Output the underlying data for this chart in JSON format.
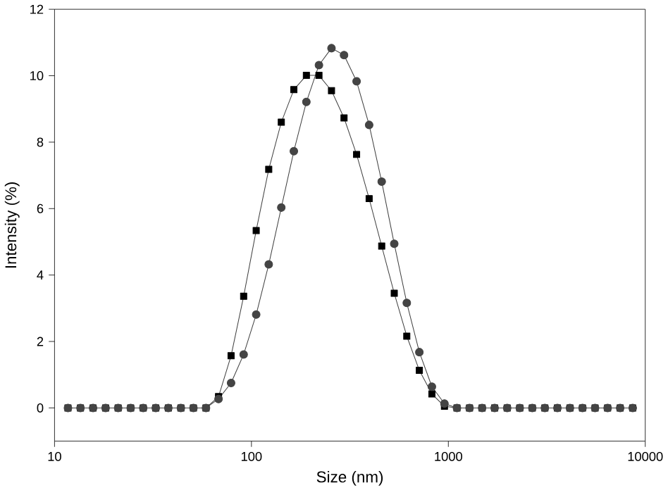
{
  "chart_data": {
    "type": "line",
    "xlabel": "Size (nm)",
    "ylabel": "Intensity (%)",
    "log": "x",
    "xlim": [
      10,
      10000
    ],
    "xticks": [
      10,
      100,
      1000,
      10000
    ],
    "ylim": [
      -1,
      12
    ],
    "yticks": [
      0,
      2,
      4,
      6,
      8,
      10,
      12
    ],
    "line_style": "solid",
    "x": [
      11.7,
      13.54,
      15.69,
      18.17,
      21.04,
      24.36,
      28.21,
      32.67,
      37.84,
      43.82,
      50.75,
      58.77,
      68.06,
      78.82,
      91.28,
      105.7,
      122.4,
      141.8,
      164.2,
      190.1,
      220.2,
      255.0,
      295.3,
      342.0,
      396.1,
      458.7,
      531.2,
      615.1,
      712.4,
      825.0,
      955.4,
      1106,
      1281,
      1484,
      1718,
      1990,
      2305,
      2669,
      3091,
      3580,
      4145,
      4801,
      5560,
      6439,
      7456,
      8635
    ],
    "series": [
      {
        "color": "#000000",
        "marker": "square",
        "values": [
          0,
          0,
          0,
          0,
          0,
          0,
          0,
          0,
          0,
          0,
          0,
          0,
          0.34,
          1.57,
          3.36,
          5.34,
          7.18,
          8.6,
          9.58,
          10.01,
          10.01,
          9.55,
          8.73,
          7.63,
          6.3,
          4.87,
          3.45,
          2.16,
          1.13,
          0.42,
          0.05,
          0,
          0,
          0,
          0,
          0,
          0,
          0,
          0,
          0,
          0,
          0,
          0,
          0,
          0,
          0
        ]
      },
      {
        "color": "#444444",
        "marker": "circle",
        "values": [
          0,
          0,
          0,
          0,
          0,
          0,
          0,
          0,
          0,
          0,
          0,
          0,
          0.27,
          0.75,
          1.61,
          2.81,
          4.32,
          6.03,
          7.73,
          9.21,
          10.32,
          10.83,
          10.62,
          9.83,
          8.52,
          6.81,
          4.94,
          3.16,
          1.68,
          0.64,
          0.13,
          0,
          0,
          0,
          0,
          0,
          0,
          0,
          0,
          0,
          0,
          0,
          0,
          0,
          0,
          0
        ]
      }
    ]
  }
}
